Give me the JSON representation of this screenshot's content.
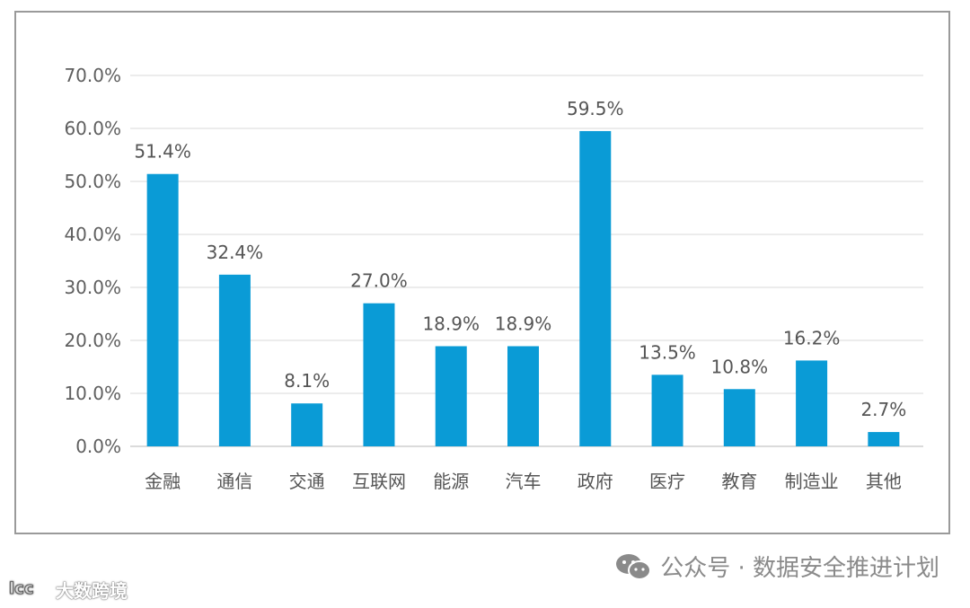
{
  "chart_data": {
    "type": "bar",
    "title": "",
    "xlabel": "",
    "ylabel": "",
    "categories": [
      "金融",
      "通信",
      "交通",
      "互联网",
      "能源",
      "汽车",
      "政府",
      "医疗",
      "教育",
      "制造业",
      "其他"
    ],
    "values": [
      51.4,
      32.4,
      8.1,
      27.0,
      18.9,
      18.9,
      59.5,
      13.5,
      10.8,
      16.2,
      2.7
    ],
    "data_labels": [
      "51.4%",
      "32.4%",
      "8.1%",
      "27.0%",
      "18.9%",
      "18.9%",
      "59.5%",
      "13.5%",
      "10.8%",
      "16.2%",
      "2.7%"
    ],
    "ylim": [
      0,
      70
    ],
    "yticks": [
      0,
      10,
      20,
      30,
      40,
      50,
      60,
      70
    ],
    "ytick_labels": [
      "0.0%",
      "10.0%",
      "20.0%",
      "30.0%",
      "40.0%",
      "50.0%",
      "60.0%",
      "70.0%"
    ],
    "grid": true,
    "bar_color": "#0a9bd6"
  },
  "footer": {
    "source": "公众号 · 数据安全推进计划",
    "icon": "wechat-icon"
  },
  "watermark": {
    "text": "大数跨境"
  }
}
